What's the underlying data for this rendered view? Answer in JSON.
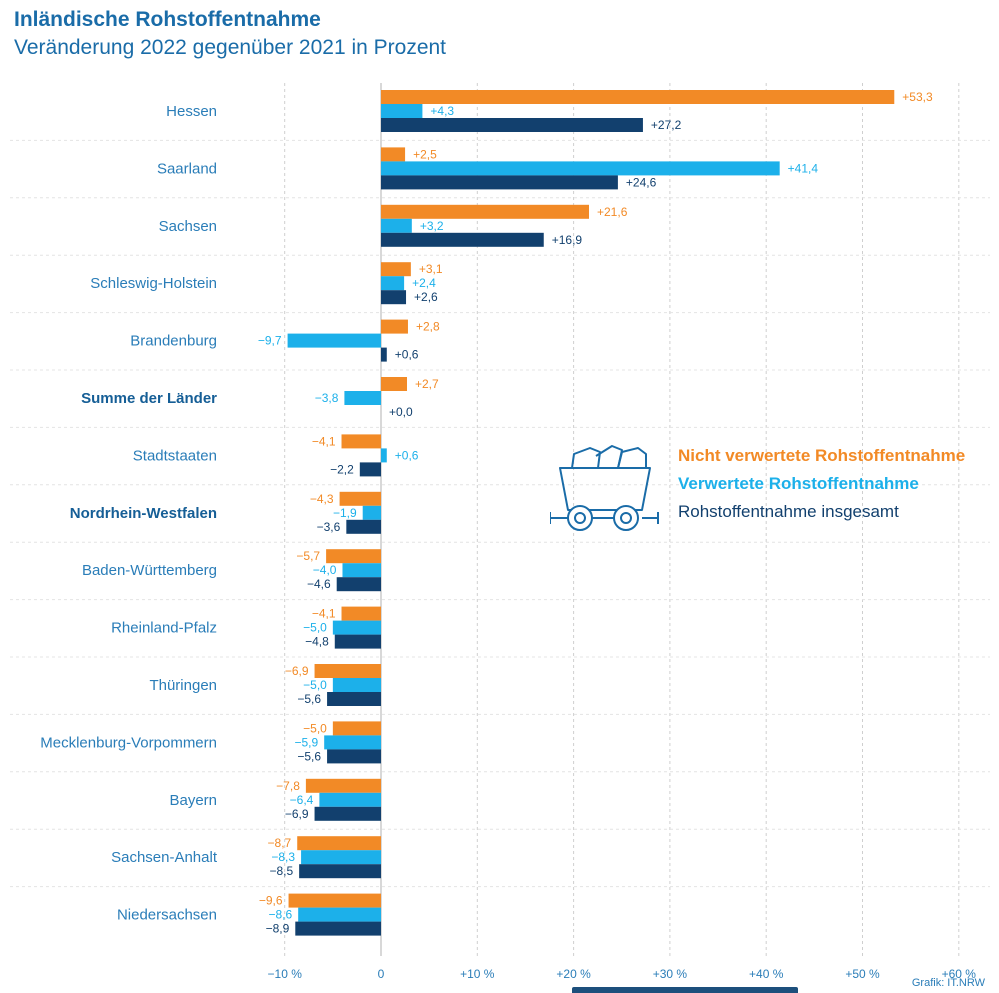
{
  "header": {
    "title": "Inländische Rohstoffentnahme",
    "subtitle": "Veränderung 2022 gegenüber 2021 in Prozent"
  },
  "footer": {
    "credit": "Grafik: IT.NRW"
  },
  "legend": {
    "icon": "mine-cart-icon",
    "items": [
      {
        "label": "Nicht verwertete Rohstoffentnahme",
        "color": "#f28a26"
      },
      {
        "label": "Verwertete Rohstoffentnahme",
        "color": "#1cb0ea"
      },
      {
        "label": "Rohstoffentnahme insgesamt",
        "color": "#12406e"
      }
    ]
  },
  "chart_data": {
    "type": "bar",
    "orientation": "horizontal",
    "title": "Inländische Rohstoffentnahme",
    "subtitle": "Veränderung 2022 gegenüber 2021 in Prozent",
    "xlabel": "",
    "ylabel": "",
    "xlim": [
      -10,
      60
    ],
    "grid": true,
    "legend_position": "middle-right",
    "x_ticks": [
      -10,
      0,
      10,
      20,
      30,
      40,
      50,
      60
    ],
    "x_tick_labels": [
      "−10 %",
      "0",
      "+10 %",
      "+20 %",
      "+30 %",
      "+40 %",
      "+50 %",
      "+60 %"
    ],
    "categories": [
      "Hessen",
      "Saarland",
      "Sachsen",
      "Schleswig-Holstein",
      "Brandenburg",
      "Summe der Länder",
      "Stadtstaaten",
      "Nordrhein-Westfalen",
      "Baden-Württemberg",
      "Rheinland-Pfalz",
      "Thüringen",
      "Mecklenburg-Vorpommern",
      "Bayern",
      "Sachsen-Anhalt",
      "Niedersachsen"
    ],
    "bold_categories": [
      "Summe der Länder",
      "Nordrhein-Westfalen"
    ],
    "series": [
      {
        "name": "Nicht verwertete Rohstoffentnahme",
        "color": "#f28a26",
        "values": [
          53.3,
          2.5,
          21.6,
          3.1,
          2.8,
          2.7,
          -4.1,
          -4.3,
          -5.7,
          -4.1,
          -6.9,
          -5.0,
          -7.8,
          -8.7,
          -9.6
        ],
        "labels": [
          "+53,3",
          "+2,5",
          "+21,6",
          "+3,1",
          "+2,8",
          "+2,7",
          "−4,1",
          "−4,3",
          "−5,7",
          "−4,1",
          "−6,9",
          "−5,0",
          "−7,8",
          "−8,7",
          "−9,6"
        ]
      },
      {
        "name": "Verwertete Rohstoffentnahme",
        "color": "#1cb0ea",
        "values": [
          4.3,
          41.4,
          3.2,
          2.4,
          -9.7,
          -3.8,
          0.6,
          -1.9,
          -4.0,
          -5.0,
          -5.0,
          -5.9,
          -6.4,
          -8.3,
          -8.6
        ],
        "labels": [
          "+4,3",
          "+41,4",
          "+3,2",
          "+2,4",
          "−9,7",
          "−3,8",
          "+0,6",
          "−1,9",
          "−4,0",
          "−5,0",
          "−5,0",
          "−5,9",
          "−6,4",
          "−8,3",
          "−8,6"
        ]
      },
      {
        "name": "Rohstoffentnahme insgesamt",
        "color": "#12406e",
        "values": [
          27.2,
          24.6,
          16.9,
          2.6,
          0.6,
          0.0,
          -2.2,
          -3.6,
          -4.6,
          -4.8,
          -5.6,
          -5.6,
          -6.9,
          -8.5,
          -8.9
        ],
        "labels": [
          "+27,2",
          "+24,6",
          "+16,9",
          "+2,6",
          "+0,6",
          "+0,0",
          "−2,2",
          "−3,6",
          "−4,6",
          "−4,8",
          "−5,6",
          "−5,6",
          "−6,9",
          "−8,5",
          "−8,9"
        ]
      }
    ]
  }
}
